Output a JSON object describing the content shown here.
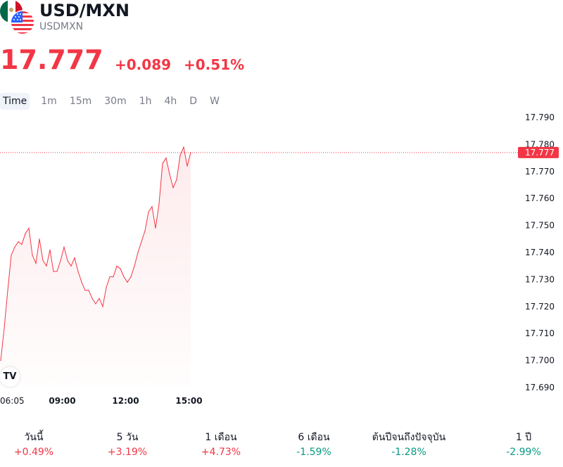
{
  "header": {
    "title": "USD/MXN",
    "symbol": "USDMXN",
    "flag_icons": [
      "mexico-flag-icon",
      "usa-flag-icon"
    ]
  },
  "quote": {
    "price": "17.777",
    "change": "+0.089",
    "change_percent": "+0.51%",
    "color": "#f23645"
  },
  "tabs": [
    {
      "label": "Time",
      "active": true
    },
    {
      "label": "1m",
      "active": false
    },
    {
      "label": "15m",
      "active": false
    },
    {
      "label": "30m",
      "active": false
    },
    {
      "label": "1h",
      "active": false
    },
    {
      "label": "4h",
      "active": false
    },
    {
      "label": "D",
      "active": false
    },
    {
      "label": "W",
      "active": false
    }
  ],
  "chart_data": {
    "type": "area",
    "x_ticks": [
      "06:05",
      "09:00",
      "12:00",
      "15:00"
    ],
    "y_ticks": [
      "17.690",
      "17.700",
      "17.710",
      "17.720",
      "17.730",
      "17.740",
      "17.750",
      "17.760",
      "17.770",
      "17.780",
      "17.790"
    ],
    "ylim": [
      17.69,
      17.79
    ],
    "last_price_label": "17.777",
    "last_price": 17.777,
    "line_color": "#f23645",
    "grid": false,
    "series": [
      {
        "x": [
          "06:05",
          "06:15",
          "06:25",
          "06:35",
          "06:45",
          "06:55",
          "07:05",
          "07:15",
          "07:25",
          "07:35",
          "07:45",
          "07:55",
          "08:05",
          "08:15",
          "08:25",
          "08:35",
          "08:45",
          "08:55",
          "09:05",
          "09:15",
          "09:25",
          "09:35",
          "09:45",
          "09:55",
          "10:05",
          "10:15",
          "10:25",
          "10:35",
          "10:45",
          "10:55",
          "11:05",
          "11:15",
          "11:25",
          "11:35",
          "11:45",
          "11:55",
          "12:05",
          "12:15",
          "12:25",
          "12:35",
          "12:45",
          "12:55",
          "13:05",
          "13:15",
          "13:25",
          "13:35",
          "13:45",
          "13:55",
          "14:05",
          "14:15",
          "14:25",
          "14:35",
          "14:45",
          "14:55",
          "15:05"
        ],
        "values": [
          17.7,
          17.712,
          17.726,
          17.739,
          17.742,
          17.744,
          17.743,
          17.747,
          17.749,
          17.739,
          17.736,
          17.745,
          17.737,
          17.735,
          17.741,
          17.733,
          17.733,
          17.737,
          17.742,
          17.737,
          17.735,
          17.738,
          17.733,
          17.729,
          17.726,
          17.726,
          17.723,
          17.721,
          17.723,
          17.72,
          17.727,
          17.731,
          17.731,
          17.735,
          17.734,
          17.731,
          17.729,
          17.731,
          17.735,
          17.74,
          17.744,
          17.748,
          17.755,
          17.757,
          17.749,
          17.758,
          17.773,
          17.775,
          17.769,
          17.764,
          17.767,
          17.776,
          17.779,
          17.772,
          17.777
        ]
      }
    ]
  },
  "performance": [
    {
      "label": "วันนี้",
      "value": "+0.49%",
      "positive": true
    },
    {
      "label": "5 วัน",
      "value": "+3.19%",
      "positive": true
    },
    {
      "label": "1 เดือน",
      "value": "+4.73%",
      "positive": true
    },
    {
      "label": "6 เดือน",
      "value": "-1.59%",
      "positive": false
    },
    {
      "label": "ต้นปีจนถึงปัจจุบัน",
      "value": "-1.28%",
      "positive": false
    },
    {
      "label": "1 ปี",
      "value": "-2.99%",
      "positive": false
    }
  ]
}
